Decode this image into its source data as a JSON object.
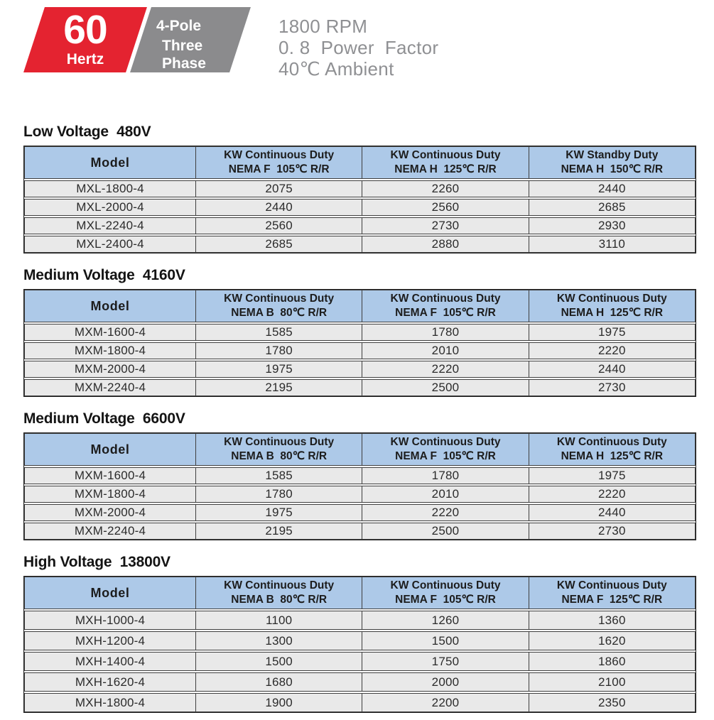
{
  "badge": {
    "frequency_value": "60",
    "frequency_unit": "Hertz",
    "pole_label": "4-Pole",
    "phase_label": "Three Phase",
    "spec_lines": [
      "1800 RPM",
      "0. 8  Power  Factor",
      "40℃ Ambient"
    ]
  },
  "colors": {
    "accent_red": "#e42330",
    "badge_gray": "#8b8b8d",
    "spec_text_gray": "#8f9093",
    "table_header_blue": "#adc9e8",
    "table_row_gray": "#e9e9e9",
    "table_border": "#3f3f3f"
  },
  "sections": [
    {
      "title": "Low Voltage  480V",
      "columns": [
        {
          "title": "Model",
          "sub": ""
        },
        {
          "title": "KW Continuous Duty",
          "sub": "NEMA F  105℃ R/R"
        },
        {
          "title": "KW Continuous Duty",
          "sub": "NEMA H  125℃ R/R"
        },
        {
          "title": "KW Standby Duty",
          "sub": "NEMA H  150℃ R/R"
        }
      ],
      "rows": [
        {
          "model": "MXL-1800-4",
          "values": [
            "2075",
            "2260",
            "2440"
          ]
        },
        {
          "model": "MXL-2000-4",
          "values": [
            "2440",
            "2560",
            "2685"
          ]
        },
        {
          "model": "MXL-2240-4",
          "values": [
            "2560",
            "2730",
            "2930"
          ]
        },
        {
          "model": "MXL-2400-4",
          "values": [
            "2685",
            "2880",
            "3110"
          ]
        }
      ]
    },
    {
      "title": "Medium Voltage  4160V",
      "columns": [
        {
          "title": "Model",
          "sub": ""
        },
        {
          "title": "KW Continuous Duty",
          "sub": "NEMA B  80℃ R/R"
        },
        {
          "title": "KW Continuous Duty",
          "sub": "NEMA F  105℃ R/R"
        },
        {
          "title": "KW Continuous Duty",
          "sub": "NEMA H  125℃ R/R"
        }
      ],
      "rows": [
        {
          "model": "MXM-1600-4",
          "values": [
            "1585",
            "1780",
            "1975"
          ]
        },
        {
          "model": "MXM-1800-4",
          "values": [
            "1780",
            "2010",
            "2220"
          ]
        },
        {
          "model": "MXM-2000-4",
          "values": [
            "1975",
            "2220",
            "2440"
          ]
        },
        {
          "model": "MXM-2240-4",
          "values": [
            "2195",
            "2500",
            "2730"
          ]
        }
      ]
    },
    {
      "title": "Medium Voltage  6600V",
      "columns": [
        {
          "title": "Model",
          "sub": ""
        },
        {
          "title": "KW Continuous Duty",
          "sub": "NEMA B  80℃ R/R"
        },
        {
          "title": "KW Continuous Duty",
          "sub": "NEMA F  105℃ R/R"
        },
        {
          "title": "KW Continuous Duty",
          "sub": "NEMA H  125℃ R/R"
        }
      ],
      "rows": [
        {
          "model": "MXM-1600-4",
          "values": [
            "1585",
            "1780",
            "1975"
          ]
        },
        {
          "model": "MXM-1800-4",
          "values": [
            "1780",
            "2010",
            "2220"
          ]
        },
        {
          "model": "MXM-2000-4",
          "values": [
            "1975",
            "2220",
            "2440"
          ]
        },
        {
          "model": "MXM-2240-4",
          "values": [
            "2195",
            "2500",
            "2730"
          ]
        }
      ]
    },
    {
      "title": "High Voltage  13800V",
      "columns": [
        {
          "title": "Model",
          "sub": ""
        },
        {
          "title": "KW Continuous Duty",
          "sub": "NEMA B  80℃ R/R"
        },
        {
          "title": "KW Continuous Duty",
          "sub": "NEMA F  105℃ R/R"
        },
        {
          "title": "KW Continuous Duty",
          "sub": "NEMA F  125℃ R/R"
        }
      ],
      "rows": [
        {
          "model": "MXH-1000-4",
          "values": [
            "1100",
            "1260",
            "1360"
          ]
        },
        {
          "model": "MXH-1200-4",
          "values": [
            "1300",
            "1500",
            "1620"
          ]
        },
        {
          "model": "MXH-1400-4",
          "values": [
            "1500",
            "1750",
            "1860"
          ]
        },
        {
          "model": "MXH-1620-4",
          "values": [
            "1680",
            "2000",
            "2100"
          ]
        },
        {
          "model": "MXH-1800-4",
          "values": [
            "1900",
            "2200",
            "2350"
          ]
        }
      ]
    }
  ]
}
